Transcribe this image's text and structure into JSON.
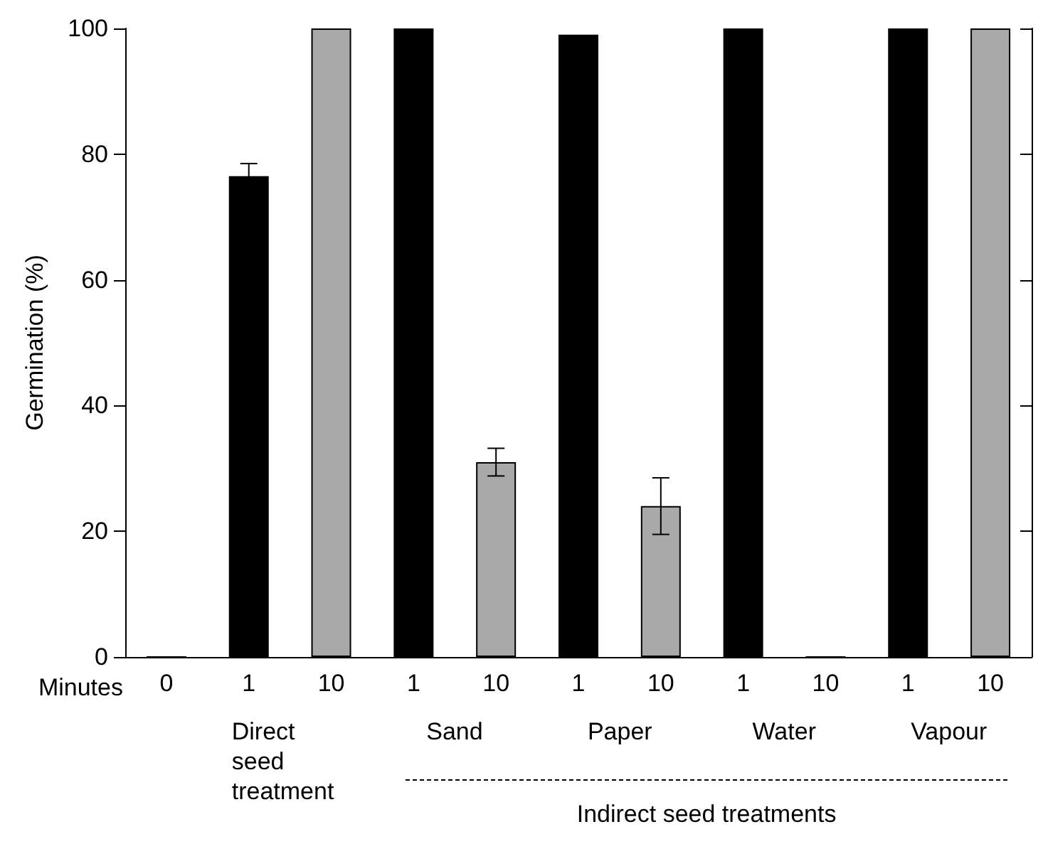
{
  "chart_data": {
    "type": "bar",
    "ylabel": "Germination (%)",
    "categories": [
      "0",
      "1",
      "10",
      "1",
      "10",
      "1",
      "10",
      "1",
      "10",
      "1",
      "10"
    ],
    "values": [
      0,
      76.5,
      100,
      100,
      31,
      99,
      24,
      100,
      0,
      100,
      100
    ],
    "colors": [
      "#000000",
      "#000000",
      "#a9a9a9",
      "#000000",
      "#a9a9a9",
      "#000000",
      "#a9a9a9",
      "#000000",
      "#a9a9a9",
      "#000000",
      "#a9a9a9"
    ],
    "errors": [
      null,
      2,
      null,
      null,
      2.2,
      null,
      4.5,
      null,
      null,
      null,
      null
    ],
    "ylim": [
      0,
      100
    ],
    "yticks": [
      0,
      20,
      40,
      60,
      80,
      100
    ],
    "grid": false,
    "annotations": [
      "Minutes",
      "Direct\nseed\ntreatment",
      "Sand",
      "Paper",
      "Water",
      "Vapour",
      "Indirect seed treatments"
    ]
  }
}
